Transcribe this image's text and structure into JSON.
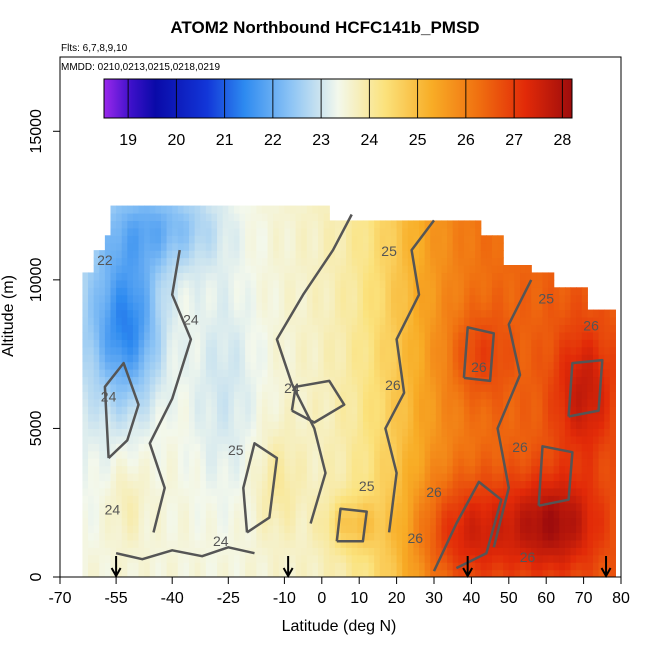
{
  "chart_data": {
    "type": "heatmap",
    "title": "ATOM2 Northbound HCFC141b_PMSD",
    "annotations": {
      "flights": "Flts: 6,7,8,9,10",
      "mmdd": "MMDD: 0210,0213,0215,0218,0219"
    },
    "xlabel": "Latitude (deg N)",
    "ylabel": "Altitude (m)",
    "xlim": [
      -70,
      80
    ],
    "ylim": [
      0,
      17500
    ],
    "x_ticks": [
      -70,
      -55,
      -40,
      -25,
      -10,
      0,
      10,
      20,
      30,
      40,
      50,
      60,
      70,
      80
    ],
    "x_tick_labels": [
      "-70",
      "-55",
      "-40",
      "-25",
      "-10",
      "0",
      "10",
      "20",
      "30",
      "40",
      "50",
      "60",
      "70",
      "80"
    ],
    "y_ticks": [
      0,
      5000,
      10000,
      15000
    ],
    "y_tick_labels": [
      "0",
      "5000",
      "10000",
      "15000"
    ],
    "colorbar": {
      "range": [
        18.5,
        28.2
      ],
      "ticks": [
        19,
        20,
        21,
        22,
        23,
        24,
        25,
        26,
        27,
        28
      ],
      "tick_labels": [
        "19",
        "20",
        "21",
        "22",
        "23",
        "24",
        "25",
        "26",
        "27",
        "28"
      ]
    },
    "contour_labels": [
      "22",
      "24",
      "24",
      "24",
      "24",
      "24",
      "25",
      "25",
      "25",
      "25",
      "26",
      "26",
      "26",
      "26",
      "26",
      "26",
      "26"
    ],
    "arrow_latitudes": [
      -55,
      -9,
      39,
      76
    ],
    "grid": false,
    "legend": "colorbar top"
  }
}
